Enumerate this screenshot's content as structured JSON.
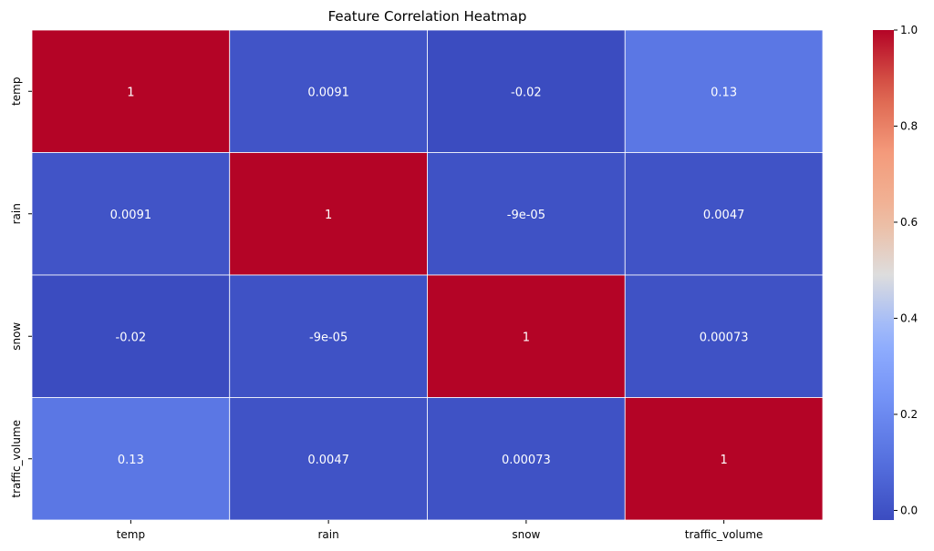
{
  "chart_data": {
    "type": "heatmap",
    "title": "Feature Correlation Heatmap",
    "x_labels": [
      "temp",
      "rain",
      "snow",
      "traffic_volume"
    ],
    "y_labels": [
      "temp",
      "rain",
      "snow",
      "traffic_volume"
    ],
    "values": [
      [
        1,
        0.0091,
        -0.02,
        0.13
      ],
      [
        0.0091,
        1,
        -9e-05,
        0.0047
      ],
      [
        -0.02,
        -9e-05,
        1,
        0.00073
      ],
      [
        0.13,
        0.0047,
        0.00073,
        1
      ]
    ],
    "annotations": [
      [
        "1",
        "0.0091",
        "-0.02",
        "0.13"
      ],
      [
        "0.0091",
        "1",
        "-9e-05",
        "0.0047"
      ],
      [
        "-0.02",
        "-9e-05",
        "1",
        "0.00073"
      ],
      [
        "0.13",
        "0.0047",
        "0.00073",
        "1"
      ]
    ],
    "colormap": "coolwarm",
    "colorbar": {
      "range": [
        -0.02,
        1.0
      ],
      "ticks": [
        0.0,
        0.2,
        0.4,
        0.6,
        0.8,
        1.0
      ],
      "tick_labels": [
        "0.0",
        "0.2",
        "0.4",
        "0.6",
        "0.8",
        "1.0"
      ]
    },
    "grid_line_color": "#ffffff"
  }
}
